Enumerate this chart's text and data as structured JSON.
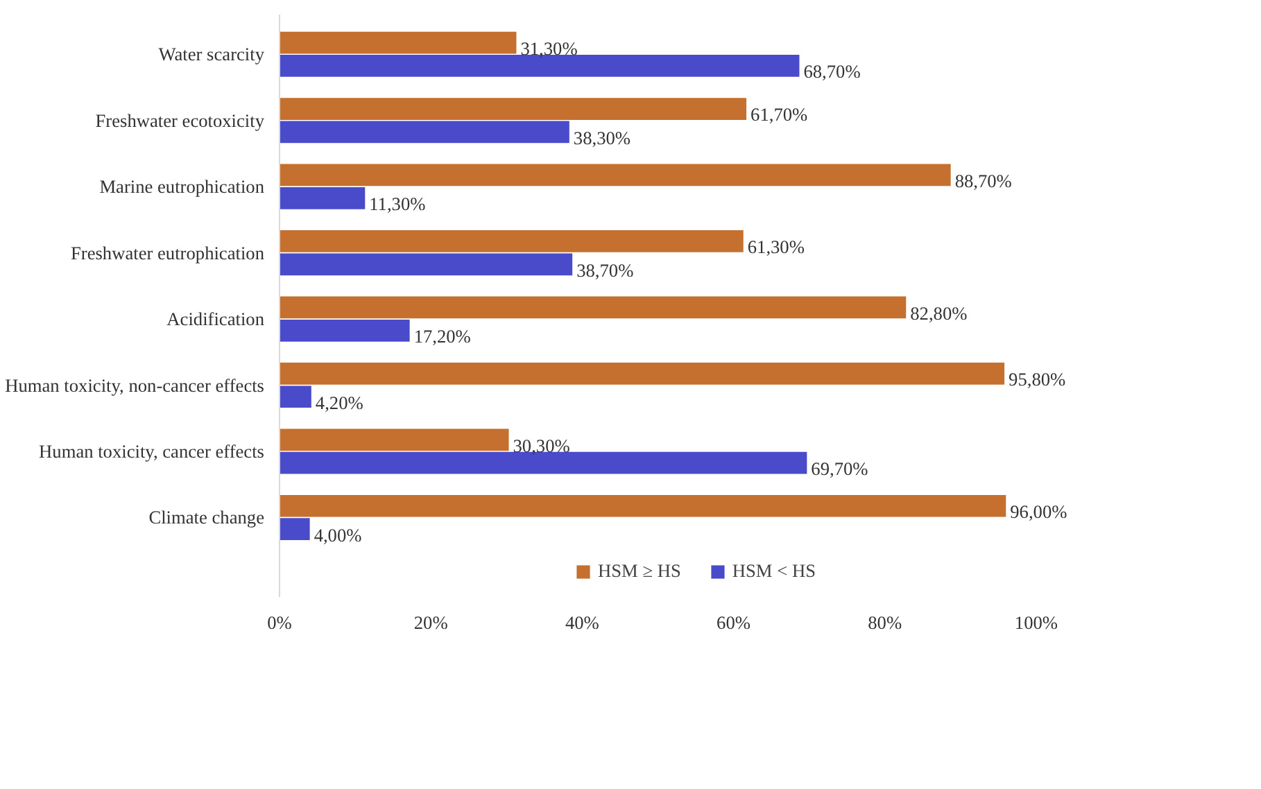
{
  "chart_data": {
    "type": "bar",
    "orientation": "horizontal",
    "categories": [
      "Water scarcity",
      "Freshwater ecotoxicity",
      "Marine eutrophication",
      "Freshwater eutrophication",
      "Acidification",
      "Human toxicity, non-cancer effects",
      "Human toxicity, cancer effects",
      "Climate change"
    ],
    "series": [
      {
        "name": "HSM ≥ HS",
        "color": "#c5702f",
        "values": [
          31.3,
          61.7,
          88.7,
          61.3,
          82.8,
          95.8,
          30.3,
          96.0
        ],
        "value_labels": [
          "31,30%",
          "61,70%",
          "88,70%",
          "61,30%",
          "82,80%",
          "95,80%",
          "30,30%",
          "96,00%"
        ]
      },
      {
        "name": "HSM < HS",
        "color": "#4a4bcb",
        "values": [
          68.7,
          38.3,
          11.3,
          38.7,
          17.2,
          4.2,
          69.7,
          4.0
        ],
        "value_labels": [
          "68,70%",
          "38,30%",
          "11,30%",
          "38,70%",
          "17,20%",
          "4,20%",
          "69,70%",
          "4,00%"
        ]
      }
    ],
    "xlim": [
      0,
      100
    ],
    "xticks": [
      {
        "value": 0,
        "label": "0%"
      },
      {
        "value": 20,
        "label": "20%"
      },
      {
        "value": 40,
        "label": "40%"
      },
      {
        "value": 60,
        "label": "60%"
      },
      {
        "value": 80,
        "label": "80%"
      },
      {
        "value": 100,
        "label": "100%"
      }
    ],
    "grid": false,
    "legend": "bottom"
  }
}
